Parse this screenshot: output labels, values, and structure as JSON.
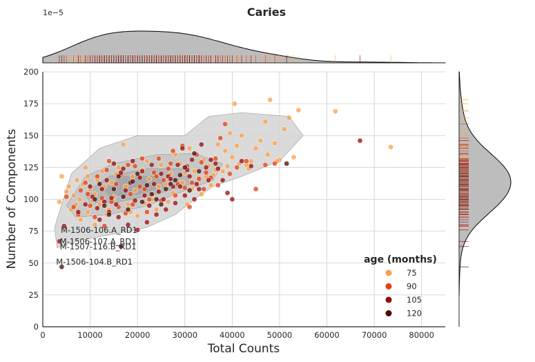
{
  "chart_data": {
    "type": "scatter",
    "title": "Caries",
    "xlabel": "Total Counts",
    "ylabel": "Number of Components",
    "xlim": [
      0,
      85000
    ],
    "ylim": [
      0,
      200
    ],
    "xticks": [
      0,
      10000,
      20000,
      30000,
      40000,
      50000,
      60000,
      70000,
      80000
    ],
    "yticks": [
      0,
      25,
      50,
      75,
      100,
      125,
      150,
      175,
      200
    ],
    "grid": true,
    "top_marginal": "KDE density of Total Counts with rug",
    "right_marginal": "KDE density of Number of Components with rug",
    "top_marginal_scale_label": "1e−5",
    "legend": {
      "title": "age (months)",
      "placement": "lower-right",
      "entries": [
        {
          "label": "75",
          "color": "#f9a049"
        },
        {
          "label": "90",
          "color": "#e2400d"
        },
        {
          "label": "105",
          "color": "#960a0a"
        },
        {
          "label": "120",
          "color": "#4a0a06"
        }
      ]
    },
    "annotations": [
      {
        "text": "M-1506-106.A_RD1",
        "x": 3800,
        "y": 76
      },
      {
        "text": "M-1506-107.A_RD1",
        "x": 3600,
        "y": 67
      },
      {
        "text": "M-1507-116.B_RD1",
        "x": 3600,
        "y": 63
      },
      {
        "text": "M-1506-104.B_RD1",
        "x": 2800,
        "y": 51
      }
    ],
    "series": [
      {
        "name": "75",
        "points": [
          [
            4000,
            118
          ],
          [
            5500,
            110
          ],
          [
            6500,
            103
          ],
          [
            7000,
            96
          ],
          [
            7800,
            100
          ],
          [
            8500,
            112
          ],
          [
            9000,
            125
          ],
          [
            9500,
            118
          ],
          [
            10000,
            108
          ],
          [
            10500,
            99
          ],
          [
            11000,
            104
          ],
          [
            11500,
            115
          ],
          [
            12000,
            96
          ],
          [
            13000,
            110
          ],
          [
            14000,
            92
          ],
          [
            15000,
            102
          ],
          [
            16000,
            125
          ],
          [
            17000,
            143
          ],
          [
            18000,
            96
          ],
          [
            19000,
            118
          ],
          [
            20000,
            87
          ],
          [
            21000,
            123
          ],
          [
            22000,
            130
          ],
          [
            23000,
            100
          ],
          [
            24000,
            92
          ],
          [
            25000,
            127
          ],
          [
            26000,
            112
          ],
          [
            27000,
            120
          ],
          [
            28000,
            135
          ],
          [
            29000,
            128
          ],
          [
            30000,
            121
          ],
          [
            31000,
            140
          ],
          [
            32000,
            122
          ],
          [
            33000,
            117
          ],
          [
            34000,
            131
          ],
          [
            35000,
            126
          ],
          [
            36000,
            119
          ],
          [
            37000,
            143
          ],
          [
            38000,
            122
          ],
          [
            39000,
            126
          ],
          [
            40000,
            133
          ],
          [
            40500,
            175
          ],
          [
            41000,
            142
          ],
          [
            42000,
            150
          ],
          [
            43000,
            127
          ],
          [
            44000,
            130
          ],
          [
            45000,
            140
          ],
          [
            46000,
            146
          ],
          [
            47000,
            161
          ],
          [
            48000,
            178
          ],
          [
            49000,
            144
          ],
          [
            50000,
            131
          ],
          [
            51000,
            155
          ],
          [
            52000,
            164
          ],
          [
            53000,
            133
          ],
          [
            54000,
            170
          ],
          [
            61800,
            169
          ],
          [
            73500,
            141
          ],
          [
            8000,
            84
          ],
          [
            9500,
            90
          ],
          [
            11000,
            80
          ],
          [
            13500,
            88
          ],
          [
            5000,
            106
          ],
          [
            6000,
            92
          ],
          [
            7200,
            115
          ],
          [
            15500,
            120
          ],
          [
            17500,
            110
          ],
          [
            19500,
            107
          ],
          [
            21500,
            97
          ],
          [
            24500,
            110
          ],
          [
            26500,
            98
          ],
          [
            29500,
            113
          ],
          [
            31500,
            108
          ],
          [
            33500,
            104
          ],
          [
            36500,
            123
          ],
          [
            38500,
            138
          ],
          [
            41500,
            128
          ],
          [
            43500,
            124
          ],
          [
            47500,
            135
          ],
          [
            49500,
            130
          ],
          [
            3500,
            98
          ],
          [
            12500,
            122
          ],
          [
            14500,
            113
          ],
          [
            18500,
            90
          ],
          [
            22500,
            116
          ],
          [
            27500,
            105
          ],
          [
            30500,
            96
          ],
          [
            34500,
            118
          ],
          [
            35500,
            111
          ],
          [
            39500,
            152
          ]
        ]
      },
      {
        "name": "90",
        "points": [
          [
            5000,
            102
          ],
          [
            6500,
            94
          ],
          [
            8000,
            107
          ],
          [
            9000,
            113
          ],
          [
            10000,
            95
          ],
          [
            11500,
            118
          ],
          [
            12500,
            101
          ],
          [
            13500,
            123
          ],
          [
            14500,
            98
          ],
          [
            15500,
            112
          ],
          [
            16500,
            119
          ],
          [
            17500,
            89
          ],
          [
            18500,
            104
          ],
          [
            19500,
            126
          ],
          [
            20500,
            110
          ],
          [
            21500,
            108
          ],
          [
            22500,
            100
          ],
          [
            23500,
            121
          ],
          [
            24500,
            132
          ],
          [
            25500,
            115
          ],
          [
            26500,
            124
          ],
          [
            27500,
            138
          ],
          [
            28500,
            112
          ],
          [
            29500,
            142
          ],
          [
            30500,
            126
          ],
          [
            31500,
            113
          ],
          [
            32500,
            135
          ],
          [
            33500,
            129
          ],
          [
            34500,
            121
          ],
          [
            35500,
            117
          ],
          [
            36500,
            132
          ],
          [
            37500,
            148
          ],
          [
            38500,
            159
          ],
          [
            39500,
            120
          ],
          [
            41000,
            125
          ],
          [
            43000,
            130
          ],
          [
            45000,
            108
          ],
          [
            47000,
            127
          ],
          [
            49000,
            128
          ],
          [
            11000,
            86
          ],
          [
            13000,
            79
          ],
          [
            16000,
            94
          ],
          [
            19000,
            96
          ],
          [
            22000,
            90
          ],
          [
            25000,
            99
          ],
          [
            28000,
            103
          ],
          [
            31000,
            94
          ],
          [
            34000,
            108
          ],
          [
            37000,
            111
          ],
          [
            7500,
            88
          ],
          [
            9500,
            104
          ],
          [
            14000,
            130
          ],
          [
            18000,
            127
          ],
          [
            21000,
            132
          ],
          [
            24000,
            118
          ],
          [
            27000,
            128
          ],
          [
            30000,
            109
          ],
          [
            33000,
            116
          ]
        ]
      },
      {
        "name": "105",
        "points": [
          [
            4500,
            79
          ],
          [
            3500,
            67
          ],
          [
            7500,
            90
          ],
          [
            9000,
            96
          ],
          [
            10500,
            102
          ],
          [
            11500,
            93
          ],
          [
            12500,
            108
          ],
          [
            13500,
            115
          ],
          [
            14500,
            101
          ],
          [
            15500,
            96
          ],
          [
            16500,
            121
          ],
          [
            17500,
            107
          ],
          [
            18500,
            113
          ],
          [
            19500,
            99
          ],
          [
            20500,
            117
          ],
          [
            21500,
            103
          ],
          [
            22500,
            95
          ],
          [
            23500,
            112
          ],
          [
            24500,
            106
          ],
          [
            25500,
            100
          ],
          [
            26500,
            118
          ],
          [
            27500,
            110
          ],
          [
            28500,
            127
          ],
          [
            29500,
            140
          ],
          [
            30500,
            123
          ],
          [
            31500,
            131
          ],
          [
            32500,
            112
          ],
          [
            33500,
            143
          ],
          [
            34500,
            125
          ],
          [
            35500,
            131
          ],
          [
            36500,
            128
          ],
          [
            38000,
            115
          ],
          [
            40000,
            100
          ],
          [
            42000,
            130
          ],
          [
            44000,
            126
          ],
          [
            67000,
            146
          ],
          [
            12000,
            84
          ],
          [
            14000,
            90
          ],
          [
            16000,
            86
          ],
          [
            18000,
            80
          ],
          [
            20000,
            76
          ],
          [
            22000,
            82
          ],
          [
            24000,
            88
          ],
          [
            26000,
            92
          ],
          [
            28000,
            97
          ],
          [
            30000,
            103
          ],
          [
            32000,
            100
          ],
          [
            10000,
            110
          ],
          [
            15000,
            128
          ],
          [
            17000,
            124
          ],
          [
            19000,
            130
          ],
          [
            21000,
            122
          ],
          [
            23000,
            127
          ],
          [
            25000,
            120
          ],
          [
            27000,
            116
          ],
          [
            29000,
            110
          ],
          [
            31000,
            118
          ],
          [
            33000,
            108
          ],
          [
            35000,
            115
          ],
          [
            13000,
            98
          ],
          [
            37000,
            124
          ],
          [
            39000,
            105
          ]
        ]
      },
      {
        "name": "120",
        "points": [
          [
            4000,
            47
          ],
          [
            16500,
            63
          ],
          [
            51500,
            128
          ],
          [
            11000,
            100
          ],
          [
            13000,
            95
          ],
          [
            15000,
            108
          ],
          [
            17000,
            102
          ],
          [
            19000,
            114
          ],
          [
            21000,
            98
          ],
          [
            23000,
            104
          ],
          [
            25000,
            96
          ],
          [
            27000,
            112
          ],
          [
            29000,
            119
          ],
          [
            31000,
            107
          ],
          [
            33000,
            122
          ],
          [
            14000,
            88
          ],
          [
            18000,
            92
          ],
          [
            20000,
            120
          ],
          [
            22000,
            111
          ],
          [
            24000,
            100
          ],
          [
            26000,
            108
          ],
          [
            28000,
            115
          ],
          [
            30000,
            125
          ],
          [
            12000,
            112
          ],
          [
            16000,
            118
          ],
          [
            32000,
            136
          ]
        ]
      }
    ]
  }
}
